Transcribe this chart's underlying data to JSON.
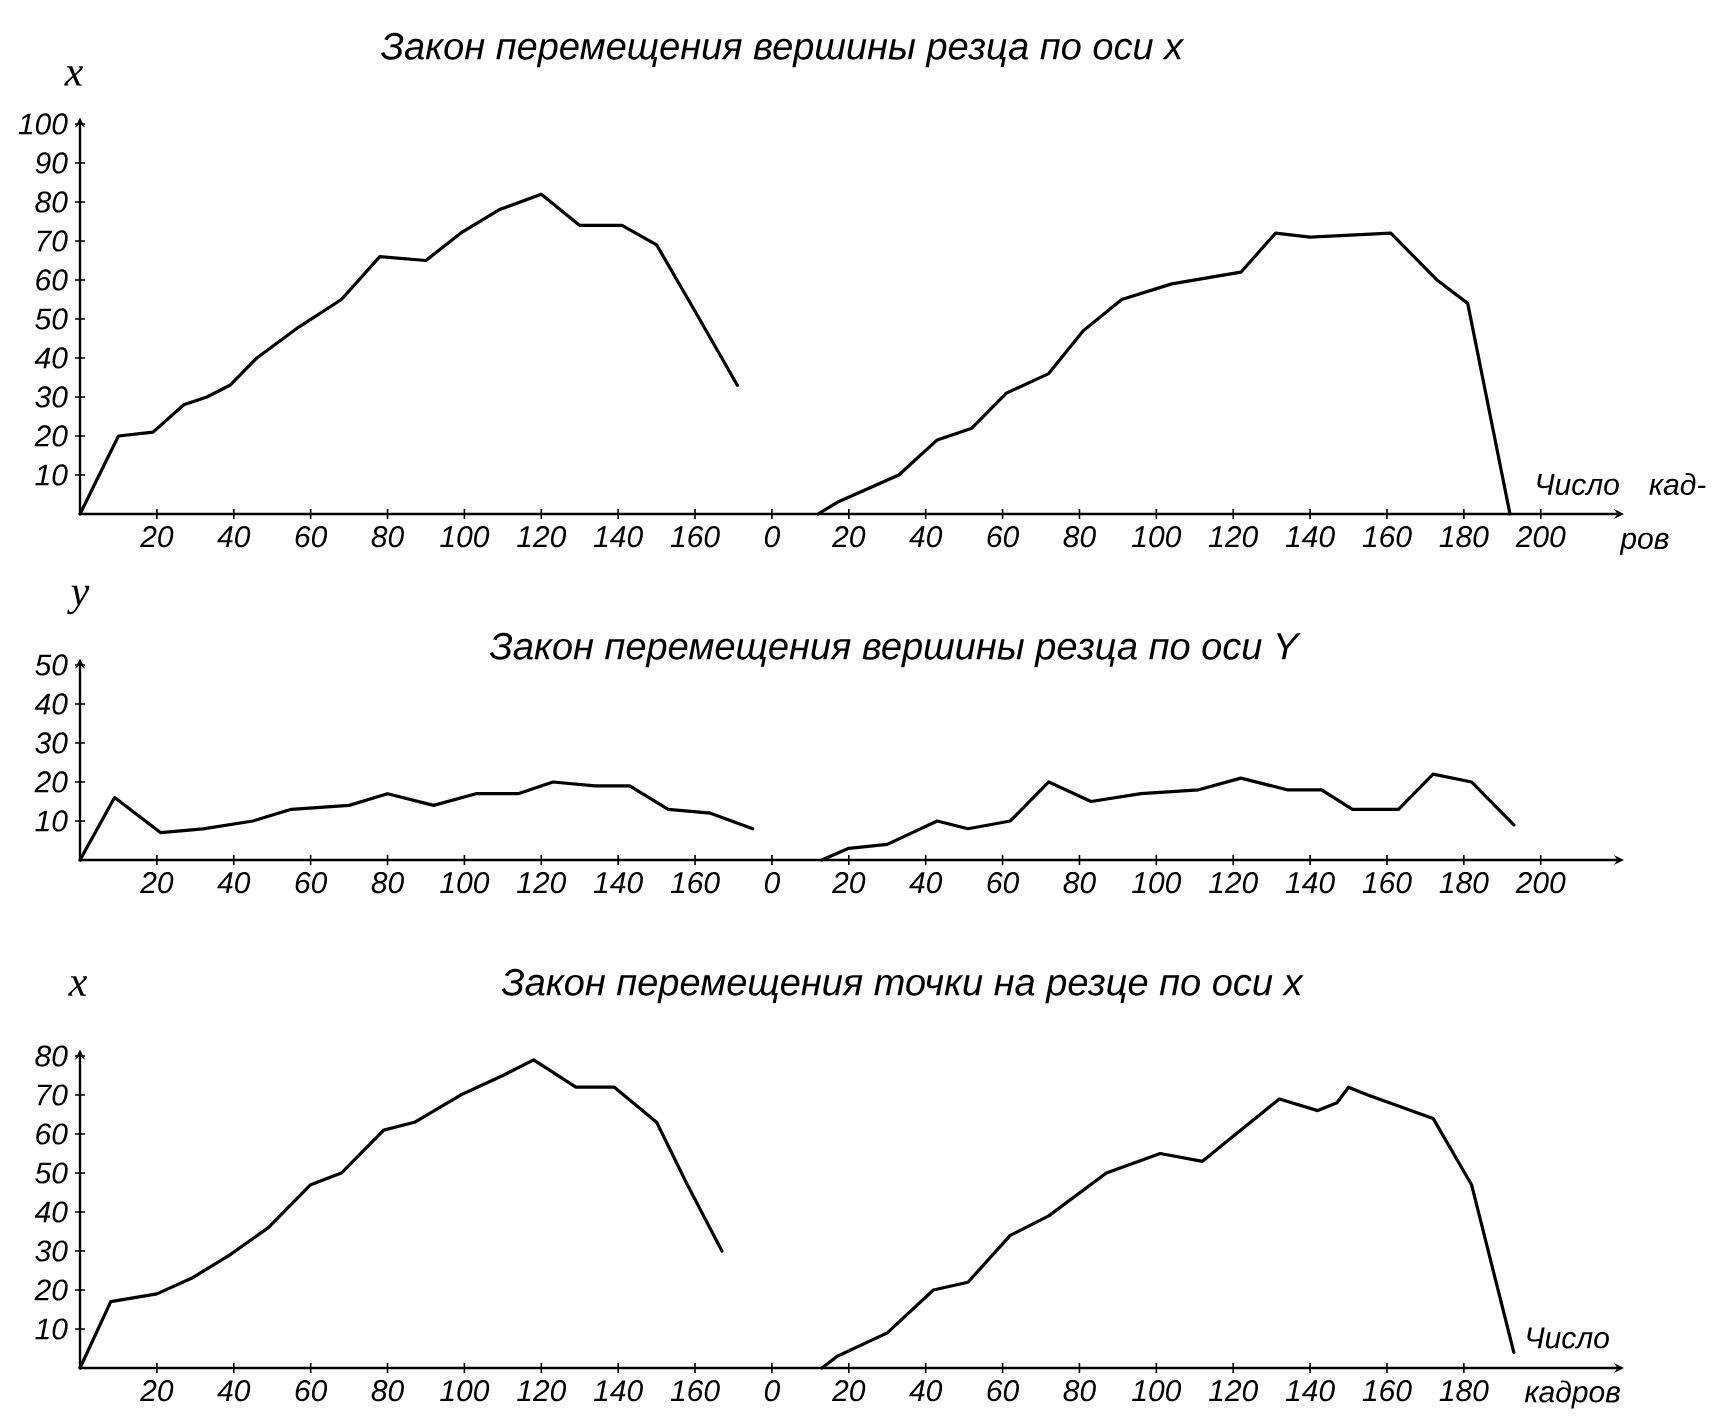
{
  "chart_data": [
    {
      "type": "line",
      "title": "Закон перемещения вершины резца по оси x",
      "ylabel": "x",
      "color": "#000000",
      "x": [
        0,
        10,
        19,
        27,
        33,
        39,
        46,
        57,
        68,
        78,
        90,
        99,
        109,
        120,
        130,
        141,
        150,
        160,
        171
      ],
      "values": [
        0,
        20,
        21,
        28,
        30,
        33,
        40,
        48,
        55,
        66,
        65,
        72,
        78,
        82,
        74,
        74,
        69,
        52,
        33
      ],
      "xlim": [
        0,
        180
      ],
      "ylim": [
        0,
        100
      ],
      "xticks": [
        20,
        40,
        60,
        80,
        100,
        120,
        140,
        160
      ],
      "yticks": [
        10,
        20,
        30,
        40,
        50,
        60,
        70,
        80,
        90,
        100
      ]
    },
    {
      "type": "line",
      "xlabel": "Число кад-ров",
      "color": "#000000",
      "x": [
        12,
        17,
        33,
        43,
        52,
        61,
        72,
        81,
        91,
        104,
        122,
        131,
        140,
        161,
        173,
        181,
        192
      ],
      "values": [
        0,
        3,
        10,
        19,
        22,
        31,
        36,
        47,
        55,
        59,
        62,
        72,
        71,
        72,
        60,
        54,
        0
      ],
      "xlim": [
        0,
        220
      ],
      "ylim": [
        0,
        100
      ],
      "xticks": [
        0,
        20,
        40,
        60,
        80,
        100,
        120,
        140,
        160,
        180,
        200
      ],
      "tick_labels": "x"
    },
    {
      "type": "line",
      "title": "Закон перемещения вершины резца по оси Y",
      "ylabel": "y",
      "color": "#000000",
      "x": [
        0,
        9,
        21,
        32,
        45,
        55,
        70,
        80,
        92,
        103,
        114,
        123,
        134,
        143,
        153,
        164,
        175
      ],
      "values": [
        0,
        16,
        7,
        8,
        10,
        13,
        14,
        17,
        14,
        17,
        17,
        20,
        19,
        19,
        13,
        12,
        8
      ],
      "xlim": [
        0,
        180
      ],
      "ylim": [
        0,
        50
      ],
      "xticks": [
        20,
        40,
        60,
        80,
        100,
        120,
        140,
        160
      ],
      "yticks": [
        10,
        20,
        30,
        40,
        50
      ]
    },
    {
      "type": "line",
      "color": "#000000",
      "x": [
        13,
        20,
        30,
        43,
        51,
        62,
        72,
        83,
        96,
        111,
        122,
        134,
        143,
        151,
        163,
        172,
        182,
        193
      ],
      "values": [
        0,
        3,
        4,
        10,
        8,
        10,
        20,
        15,
        17,
        18,
        21,
        18,
        18,
        13,
        13,
        22,
        20,
        9
      ],
      "xlim": [
        0,
        220
      ],
      "ylim": [
        0,
        50
      ],
      "xticks": [
        0,
        20,
        40,
        60,
        80,
        100,
        120,
        140,
        160,
        180,
        200
      ],
      "tick_labels": "x"
    },
    {
      "type": "line",
      "title": "Закон перемещения точки на резце по оси x",
      "ylabel": "x",
      "color": "#000000",
      "x": [
        0,
        8,
        20,
        29,
        39,
        49,
        60,
        68,
        79,
        87,
        99,
        110,
        118,
        129,
        139,
        150,
        158,
        167
      ],
      "values": [
        0,
        17,
        19,
        23,
        29,
        36,
        47,
        50,
        61,
        63,
        70,
        75,
        79,
        72,
        72,
        63,
        47,
        30
      ],
      "xlim": [
        0,
        180
      ],
      "ylim": [
        0,
        80
      ],
      "xticks": [
        20,
        40,
        60,
        80,
        100,
        120,
        140,
        160
      ],
      "yticks": [
        10,
        20,
        30,
        40,
        50,
        60,
        70,
        80
      ]
    },
    {
      "type": "line",
      "xlabel": "Число кадров",
      "color": "#000000",
      "x": [
        13,
        17,
        30,
        42,
        51,
        62,
        72,
        87,
        101,
        112,
        122,
        132,
        142,
        147,
        150,
        155,
        172,
        182,
        193
      ],
      "values": [
        0,
        3,
        9,
        20,
        22,
        34,
        39,
        50,
        55,
        53,
        61,
        69,
        66,
        68,
        72,
        70,
        64,
        47,
        4
      ],
      "xlim": [
        0,
        220
      ],
      "ylim": [
        0,
        80
      ],
      "xticks": [
        0,
        20,
        40,
        60,
        80,
        100,
        120,
        140,
        160,
        180
      ],
      "tick_labels": "x"
    }
  ]
}
